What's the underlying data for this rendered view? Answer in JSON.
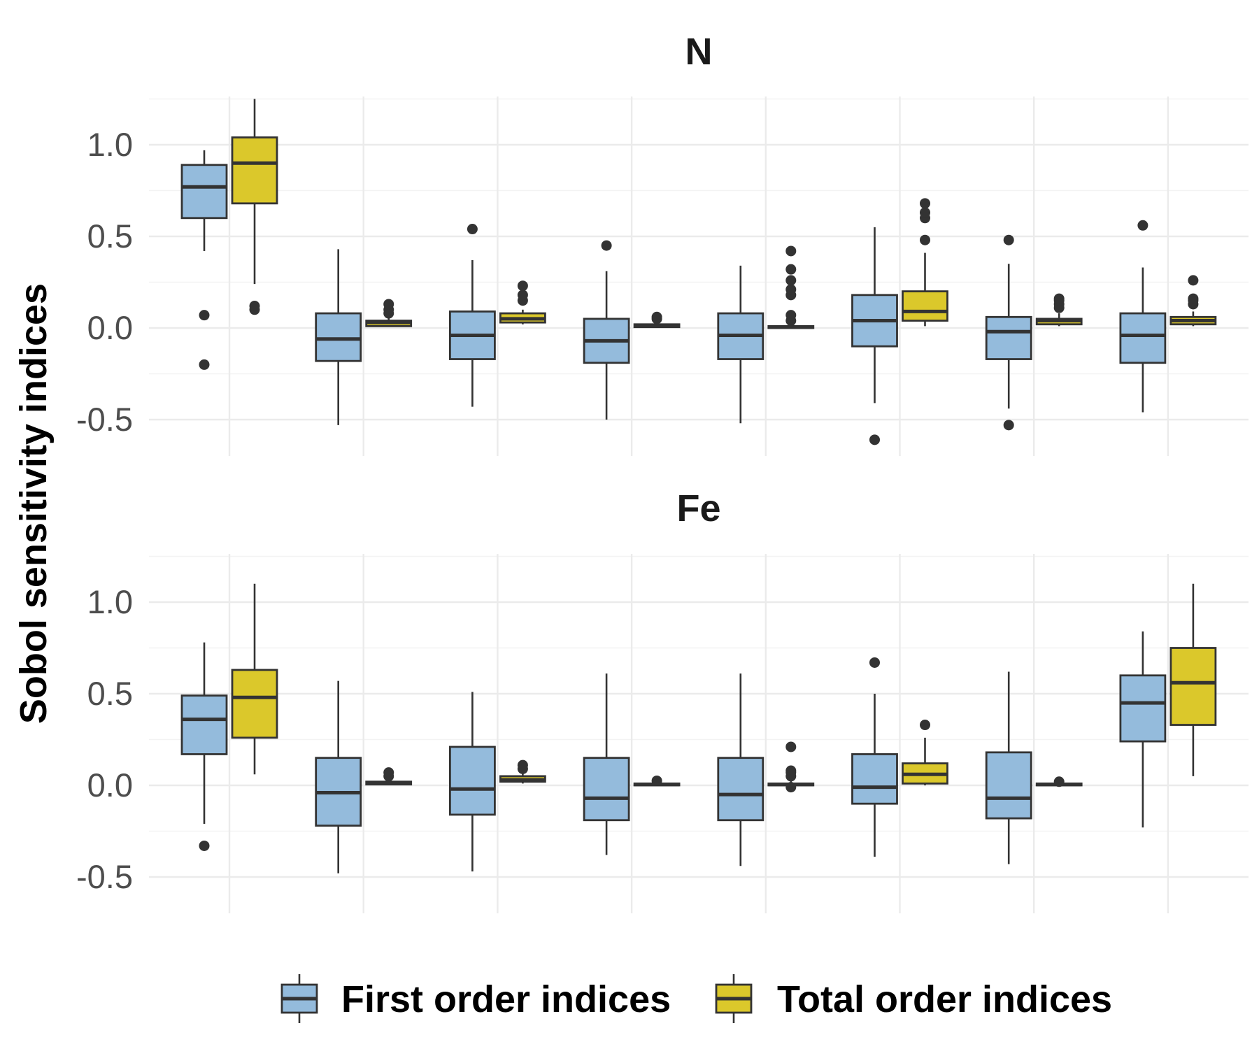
{
  "chart_data": {
    "type": "boxplot",
    "ylabel": "Sobol sensitivity indices",
    "xlabel": "",
    "y_ticks": [
      -0.5,
      0.0,
      0.5,
      1.0
    ],
    "y_tick_labels": [
      "-0.5",
      "0.0",
      "0.5",
      "1.0"
    ],
    "ylim": [
      -0.7,
      1.25
    ],
    "n_groups": 8,
    "legend": {
      "position": "bottom",
      "entries": [
        {
          "name": "First order indices",
          "color": "#94bbdc"
        },
        {
          "name": "Total order indices",
          "color": "#dbc82b"
        }
      ]
    },
    "facets": [
      {
        "title": "N",
        "groups": [
          {
            "first": {
              "lw": 0.42,
              "q1": 0.6,
              "med": 0.77,
              "q3": 0.89,
              "uw": 0.97,
              "outliers": [
                0.07,
                -0.2
              ]
            },
            "total": {
              "lw": 0.24,
              "q1": 0.68,
              "med": 0.9,
              "q3": 1.04,
              "uw": 1.25,
              "outliers": [
                0.1,
                0.12
              ]
            }
          },
          {
            "first": {
              "lw": -0.53,
              "q1": -0.18,
              "med": -0.06,
              "q3": 0.08,
              "uw": 0.43,
              "outliers": []
            },
            "total": {
              "lw": 0.01,
              "q1": 0.01,
              "med": 0.03,
              "q3": 0.04,
              "uw": 0.06,
              "outliers": [
                0.08,
                0.1,
                0.13
              ]
            }
          },
          {
            "first": {
              "lw": -0.43,
              "q1": -0.17,
              "med": -0.04,
              "q3": 0.09,
              "uw": 0.37,
              "outliers": [
                0.54
              ]
            },
            "total": {
              "lw": 0.02,
              "q1": 0.03,
              "med": 0.05,
              "q3": 0.08,
              "uw": 0.1,
              "outliers": [
                0.15,
                0.18,
                0.23
              ]
            }
          },
          {
            "first": {
              "lw": -0.5,
              "q1": -0.19,
              "med": -0.07,
              "q3": 0.05,
              "uw": 0.31,
              "outliers": [
                0.45
              ]
            },
            "total": {
              "lw": 0.0,
              "q1": 0.005,
              "med": 0.01,
              "q3": 0.02,
              "uw": 0.03,
              "outliers": [
                0.05,
                0.06
              ]
            }
          },
          {
            "first": {
              "lw": -0.52,
              "q1": -0.17,
              "med": -0.04,
              "q3": 0.08,
              "uw": 0.34,
              "outliers": []
            },
            "total": {
              "lw": 0.0,
              "q1": 0.0,
              "med": 0.005,
              "q3": 0.01,
              "uw": 0.03,
              "outliers": [
                0.04,
                0.07,
                0.18,
                0.21,
                0.26,
                0.32,
                0.42
              ]
            }
          },
          {
            "first": {
              "lw": -0.41,
              "q1": -0.1,
              "med": 0.04,
              "q3": 0.18,
              "uw": 0.55,
              "outliers": [
                -0.61
              ]
            },
            "total": {
              "lw": 0.01,
              "q1": 0.04,
              "med": 0.09,
              "q3": 0.2,
              "uw": 0.41,
              "outliers": [
                0.48,
                0.6,
                0.63,
                0.68
              ]
            }
          },
          {
            "first": {
              "lw": -0.44,
              "q1": -0.17,
              "med": -0.02,
              "q3": 0.06,
              "uw": 0.35,
              "outliers": [
                0.48,
                -0.53
              ]
            },
            "total": {
              "lw": 0.01,
              "q1": 0.02,
              "med": 0.04,
              "q3": 0.05,
              "uw": 0.08,
              "outliers": [
                0.11,
                0.13,
                0.15,
                0.16
              ]
            }
          },
          {
            "first": {
              "lw": -0.46,
              "q1": -0.19,
              "med": -0.04,
              "q3": 0.08,
              "uw": 0.33,
              "outliers": [
                0.56
              ]
            },
            "total": {
              "lw": 0.01,
              "q1": 0.02,
              "med": 0.04,
              "q3": 0.06,
              "uw": 0.09,
              "outliers": [
                0.13,
                0.15,
                0.16,
                0.26
              ]
            }
          }
        ]
      },
      {
        "title": "Fe",
        "groups": [
          {
            "first": {
              "lw": -0.21,
              "q1": 0.17,
              "med": 0.36,
              "q3": 0.49,
              "uw": 0.78,
              "outliers": [
                -0.33
              ]
            },
            "total": {
              "lw": 0.06,
              "q1": 0.26,
              "med": 0.48,
              "q3": 0.63,
              "uw": 1.1,
              "outliers": []
            }
          },
          {
            "first": {
              "lw": -0.48,
              "q1": -0.22,
              "med": -0.04,
              "q3": 0.15,
              "uw": 0.57,
              "outliers": []
            },
            "total": {
              "lw": 0.0,
              "q1": 0.005,
              "med": 0.01,
              "q3": 0.02,
              "uw": 0.03,
              "outliers": [
                0.05,
                0.07
              ]
            }
          },
          {
            "first": {
              "lw": -0.47,
              "q1": -0.16,
              "med": -0.02,
              "q3": 0.21,
              "uw": 0.51,
              "outliers": []
            },
            "total": {
              "lw": 0.01,
              "q1": 0.02,
              "med": 0.03,
              "q3": 0.05,
              "uw": 0.07,
              "outliers": [
                0.09,
                0.11
              ]
            }
          },
          {
            "first": {
              "lw": -0.38,
              "q1": -0.19,
              "med": -0.07,
              "q3": 0.15,
              "uw": 0.61,
              "outliers": []
            },
            "total": {
              "lw": 0.0,
              "q1": 0.0,
              "med": 0.005,
              "q3": 0.01,
              "uw": 0.015,
              "outliers": [
                0.025
              ]
            }
          },
          {
            "first": {
              "lw": -0.44,
              "q1": -0.19,
              "med": -0.05,
              "q3": 0.15,
              "uw": 0.61,
              "outliers": []
            },
            "total": {
              "lw": 0.0,
              "q1": 0.0,
              "med": 0.005,
              "q3": 0.01,
              "uw": 0.03,
              "outliers": [
                -0.01,
                0.05,
                0.07,
                0.08,
                0.21
              ]
            }
          },
          {
            "first": {
              "lw": -0.39,
              "q1": -0.1,
              "med": -0.01,
              "q3": 0.17,
              "uw": 0.5,
              "outliers": [
                0.67
              ]
            },
            "total": {
              "lw": 0.0,
              "q1": 0.01,
              "med": 0.06,
              "q3": 0.12,
              "uw": 0.26,
              "outliers": [
                0.33
              ]
            }
          },
          {
            "first": {
              "lw": -0.43,
              "q1": -0.18,
              "med": -0.07,
              "q3": 0.18,
              "uw": 0.62,
              "outliers": []
            },
            "total": {
              "lw": 0.0,
              "q1": 0.0,
              "med": 0.005,
              "q3": 0.01,
              "uw": 0.015,
              "outliers": [
                0.02
              ]
            }
          },
          {
            "first": {
              "lw": -0.23,
              "q1": 0.24,
              "med": 0.45,
              "q3": 0.6,
              "uw": 0.84,
              "outliers": []
            },
            "total": {
              "lw": 0.05,
              "q1": 0.33,
              "med": 0.56,
              "q3": 0.75,
              "uw": 1.1,
              "outliers": []
            }
          }
        ]
      }
    ]
  }
}
